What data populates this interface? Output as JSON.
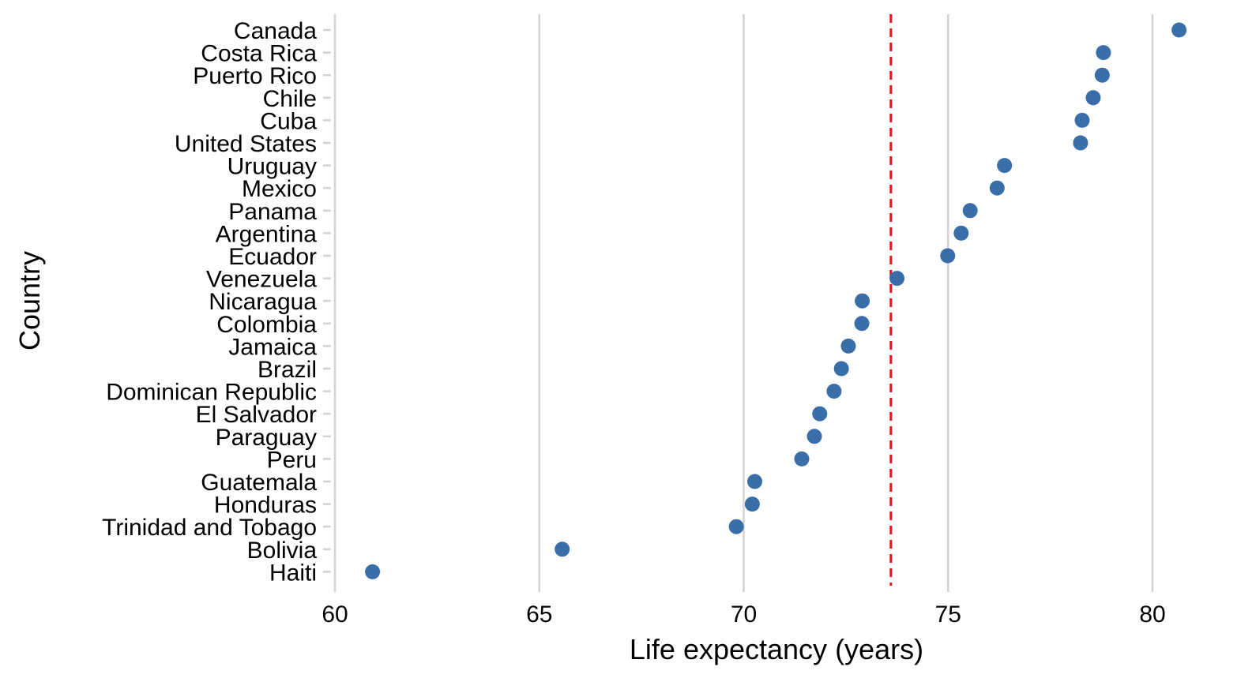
{
  "chart_data": {
    "type": "scatter",
    "title": "",
    "xlabel": "Life expectancy (years)",
    "ylabel": "Country",
    "xlim": [
      60,
      81
    ],
    "x_ticks": [
      60,
      65,
      70,
      75,
      80
    ],
    "x_tick_labels": [
      "60",
      "65",
      "70",
      "75",
      "80"
    ],
    "grid": "vertical major gridlines",
    "legend": "none",
    "categories": [
      "Canada",
      "Costa Rica",
      "Puerto Rico",
      "Chile",
      "Cuba",
      "United States",
      "Uruguay",
      "Mexico",
      "Panama",
      "Argentina",
      "Ecuador",
      "Venezuela",
      "Nicaragua",
      "Colombia",
      "Jamaica",
      "Brazil",
      "Dominican Republic",
      "El Salvador",
      "Paraguay",
      "Peru",
      "Guatemala",
      "Honduras",
      "Trinidad and Tobago",
      "Bolivia",
      "Haiti"
    ],
    "values": [
      80.65,
      78.8,
      78.77,
      78.55,
      78.28,
      78.24,
      76.38,
      76.2,
      75.54,
      75.32,
      74.99,
      73.75,
      72.9,
      72.89,
      72.56,
      72.39,
      72.21,
      71.86,
      71.73,
      71.42,
      70.27,
      70.21,
      69.82,
      65.56,
      60.92
    ],
    "reference_line": {
      "x": 73.6,
      "style": "dashed"
    },
    "colors": {
      "points": "#3a6ea8",
      "reference_line": "#e8131b",
      "grid": "#d3d3d3",
      "axis_ticks": "#d3d3d3",
      "text": "#000000"
    }
  }
}
